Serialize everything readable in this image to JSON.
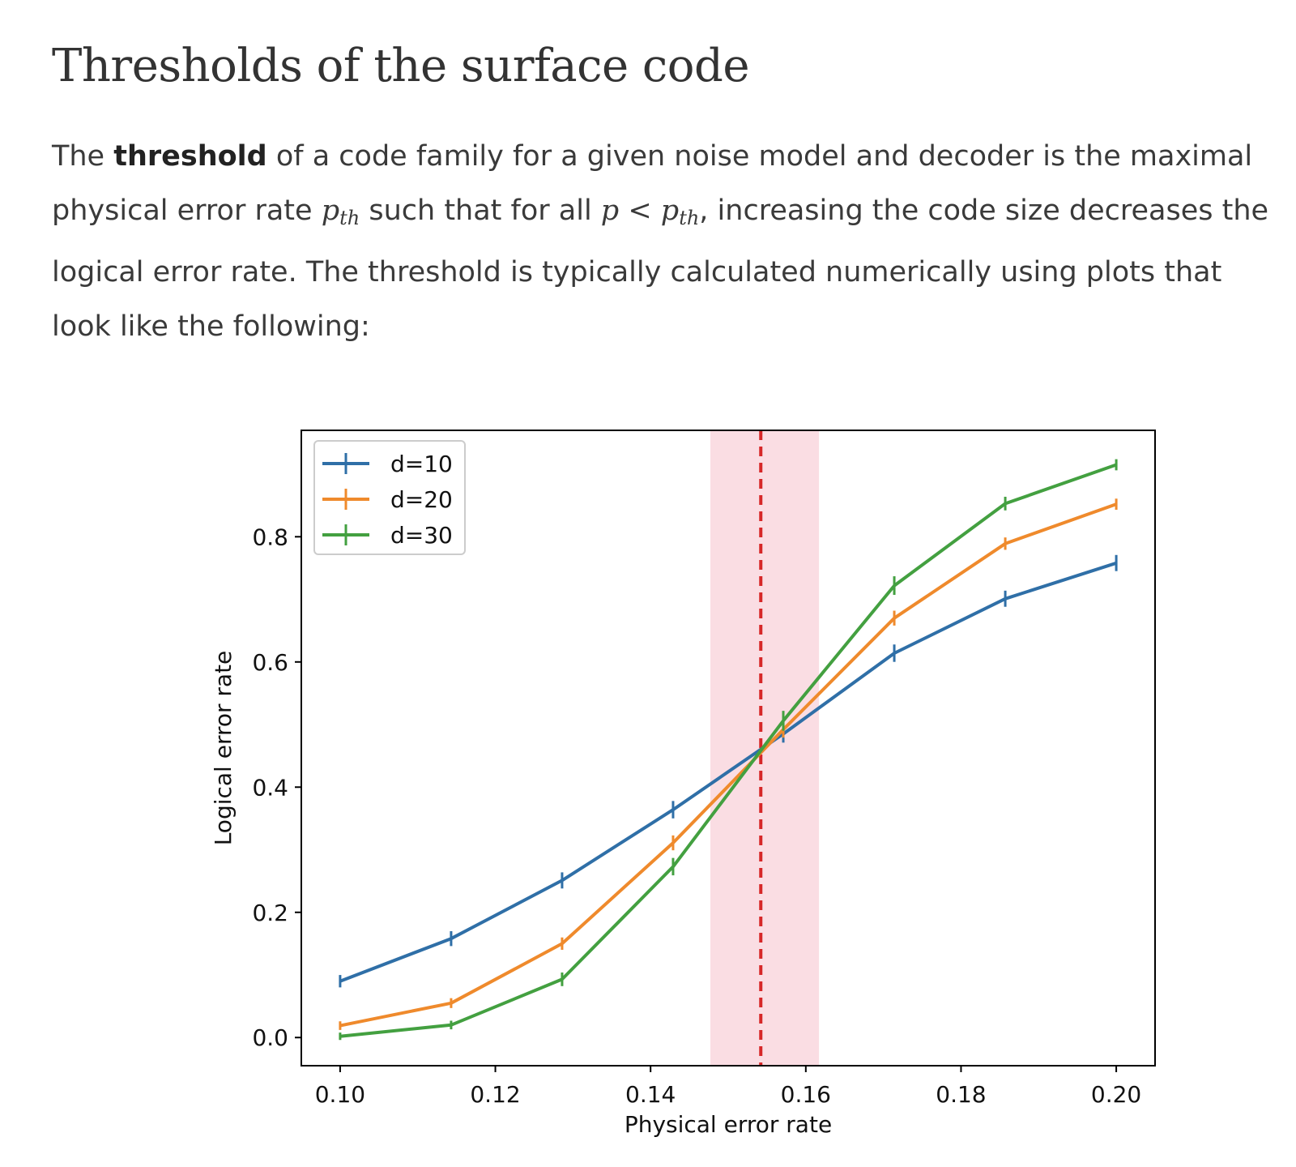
{
  "heading": "Thresholds of the surface code",
  "paragraph": {
    "part1": "The ",
    "bold": "threshold",
    "part2": " of a code family for a given noise model and decoder is the maximal physical error rate ",
    "math_pth_base": "p",
    "math_pth_sub": "th",
    "part3": " such that for all ",
    "math_p": "p",
    "math_lt": " < ",
    "part4": ", increasing the code size decreases the logical error rate. The threshold is typically calculated numerically using plots that look like the following:"
  },
  "chart_data": {
    "type": "line",
    "title": "",
    "xlabel": "Physical error rate",
    "ylabel": "Logical error rate",
    "xlim": [
      0.095,
      0.205
    ],
    "ylim": [
      -0.045,
      0.97
    ],
    "xticks": [
      0.1,
      0.12,
      0.14,
      0.16,
      0.18,
      0.2
    ],
    "xtick_labels": [
      "0.10",
      "0.12",
      "0.14",
      "0.16",
      "0.18",
      "0.20"
    ],
    "yticks": [
      0.0,
      0.2,
      0.4,
      0.6,
      0.8
    ],
    "ytick_labels": [
      "0.0",
      "0.2",
      "0.4",
      "0.6",
      "0.8"
    ],
    "x": [
      0.1,
      0.1143,
      0.1286,
      0.1429,
      0.1571,
      0.1714,
      0.1857,
      0.2
    ],
    "series": [
      {
        "name": "d=10",
        "color": "#2f6fa7",
        "values": [
          0.09,
          0.158,
          0.251,
          0.364,
          0.485,
          0.614,
          0.701,
          0.758
        ],
        "errors": [
          0.006,
          0.008,
          0.009,
          0.01,
          0.01,
          0.01,
          0.009,
          0.009
        ]
      },
      {
        "name": "d=20",
        "color": "#ef8a2c",
        "values": [
          0.019,
          0.055,
          0.15,
          0.311,
          0.492,
          0.67,
          0.789,
          0.852
        ],
        "errors": [
          0.003,
          0.004,
          0.006,
          0.008,
          0.009,
          0.008,
          0.006,
          0.005
        ]
      },
      {
        "name": "d=30",
        "color": "#43a040",
        "values": [
          0.002,
          0.02,
          0.093,
          0.273,
          0.506,
          0.722,
          0.853,
          0.915
        ],
        "errors": [
          0.002,
          0.003,
          0.007,
          0.01,
          0.012,
          0.011,
          0.007,
          0.005
        ]
      }
    ],
    "threshold": {
      "value": 0.1542,
      "band": [
        0.1477,
        0.1617
      ],
      "line_color": "#d62728",
      "band_color": "#fadde3"
    },
    "legend": "upper left",
    "grid": false
  }
}
